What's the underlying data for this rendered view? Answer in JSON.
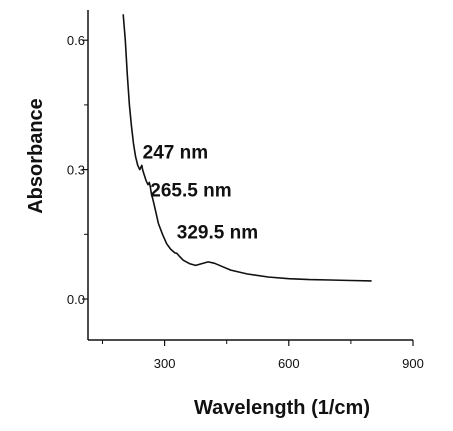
{
  "chart_data": {
    "type": "line",
    "title": "",
    "xlabel": "Wavelength (1/cm)",
    "ylabel": "Absorbance",
    "xlim": [
      115,
      900
    ],
    "ylim": [
      -0.095,
      0.67
    ],
    "x_ticks": [
      {
        "value": 300,
        "label": "300"
      },
      {
        "value": 600,
        "label": "600"
      },
      {
        "value": 900,
        "label": "900"
      }
    ],
    "x_minor_ticks": [
      150,
      450,
      750
    ],
    "y_ticks": [
      {
        "value": 0.0,
        "label": "0.0"
      },
      {
        "value": 0.3,
        "label": "0.3"
      },
      {
        "value": 0.6,
        "label": "0.6"
      }
    ],
    "y_minor_ticks": [
      0.15,
      0.45
    ],
    "grid": false,
    "series": [
      {
        "color": "#111111",
        "x": [
          200,
          205,
          210,
          215,
          220,
          225,
          230,
          235,
          240,
          245,
          247,
          250,
          255,
          260,
          263,
          265.5,
          268,
          272,
          278,
          285,
          295,
          305,
          315,
          325,
          329.5,
          335,
          345,
          360,
          375,
          390,
          405,
          420,
          440,
          460,
          500,
          550,
          600,
          650,
          700,
          750,
          800
        ],
        "y": [
          0.66,
          0.6,
          0.52,
          0.45,
          0.4,
          0.36,
          0.33,
          0.31,
          0.3,
          0.31,
          0.3,
          0.29,
          0.275,
          0.265,
          0.27,
          0.26,
          0.245,
          0.23,
          0.205,
          0.175,
          0.15,
          0.128,
          0.115,
          0.107,
          0.106,
          0.1,
          0.09,
          0.082,
          0.078,
          0.082,
          0.086,
          0.083,
          0.075,
          0.067,
          0.058,
          0.051,
          0.047,
          0.045,
          0.044,
          0.043,
          0.042
        ]
      }
    ],
    "annotations": [
      {
        "text": "247 nm",
        "x": 247,
        "y": 0.326
      },
      {
        "text": "265.5 nm",
        "x": 265.5,
        "y": 0.238
      },
      {
        "text": "329.5 nm",
        "x": 329.5,
        "y": 0.14
      }
    ]
  }
}
